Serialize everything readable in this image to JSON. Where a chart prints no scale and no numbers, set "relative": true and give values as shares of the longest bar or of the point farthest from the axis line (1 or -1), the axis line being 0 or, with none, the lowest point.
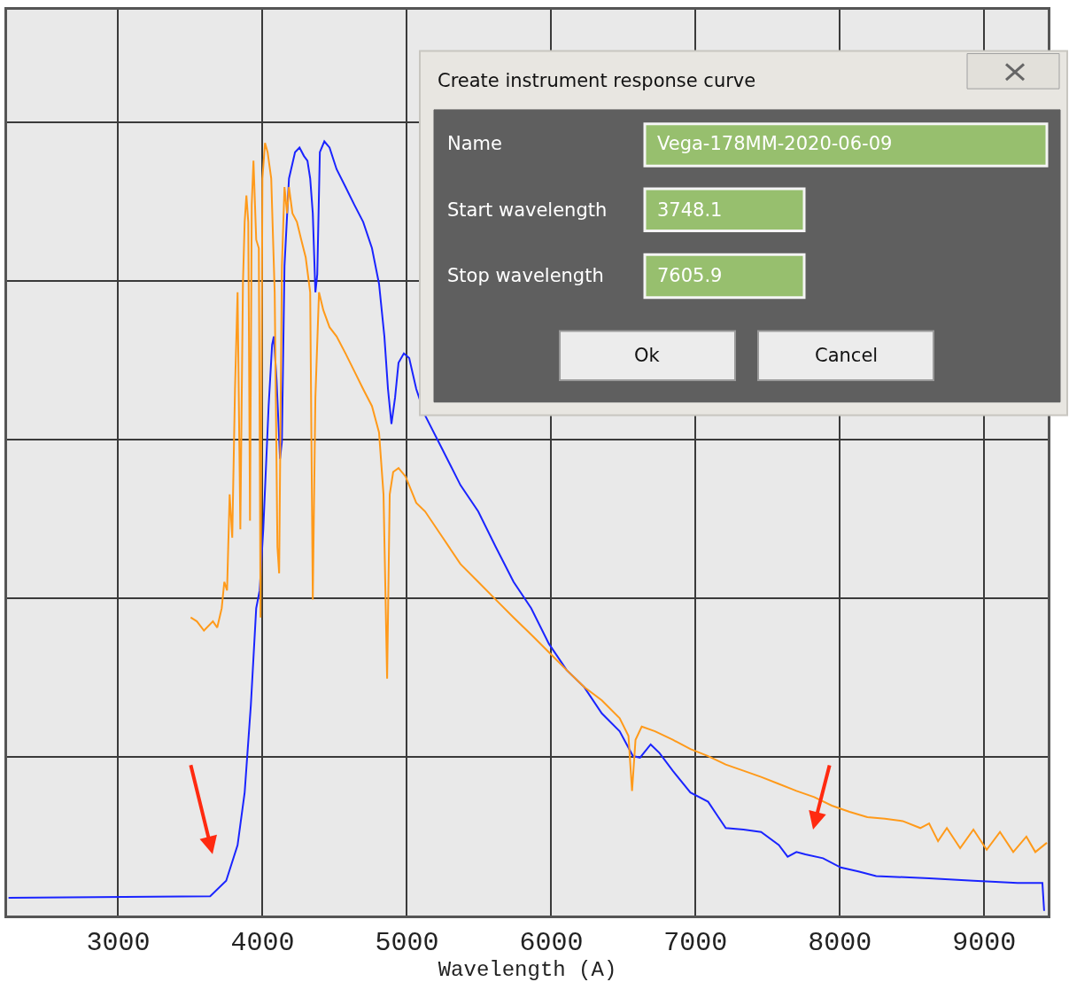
{
  "chart_data": {
    "type": "line",
    "relative": true,
    "xlabel": "Wavelength (A)",
    "xlim": [
      2230,
      9440
    ],
    "xticks": [
      3000,
      4000,
      5000,
      6000,
      7000,
      8000,
      9000
    ],
    "grid": true,
    "legend": false,
    "tick_labels": "x",
    "marker": "none",
    "line_style": "solid",
    "series": [
      {
        "color": "#1a24ff",
        "x": [
          2240,
          3637,
          3748,
          3827,
          3876,
          3919,
          3956,
          3980,
          4005,
          4042,
          4066,
          4078,
          4097,
          4121,
          4134,
          4152,
          4183,
          4225,
          4256,
          4287,
          4311,
          4330,
          4348,
          4366,
          4379,
          4397,
          4428,
          4464,
          4513,
          4575,
          4636,
          4697,
          4758,
          4807,
          4844,
          4869,
          4893,
          4918,
          4942,
          4979,
          5016,
          5065,
          5126,
          5249,
          5371,
          5494,
          5616,
          5739,
          5861,
          5984,
          6107,
          6229,
          6351,
          6474,
          6566,
          6615,
          6689,
          6750,
          6842,
          6964,
          7087,
          7148,
          7209,
          7332,
          7454,
          7577,
          7638,
          7699,
          7761,
          7883,
          8006,
          8128,
          8251,
          8618,
          8925,
          9231,
          9403,
          9415
        ],
        "values": [
          0.023,
          0.025,
          0.045,
          0.091,
          0.159,
          0.272,
          0.397,
          0.42,
          0.499,
          0.658,
          0.737,
          0.748,
          0.692,
          0.59,
          0.612,
          0.839,
          0.952,
          0.986,
          0.992,
          0.981,
          0.975,
          0.952,
          0.907,
          0.805,
          0.828,
          0.986,
          1.0,
          0.992,
          0.964,
          0.941,
          0.918,
          0.896,
          0.862,
          0.816,
          0.748,
          0.68,
          0.635,
          0.669,
          0.714,
          0.726,
          0.72,
          0.68,
          0.646,
          0.601,
          0.556,
          0.522,
          0.476,
          0.431,
          0.397,
          0.351,
          0.317,
          0.295,
          0.261,
          0.238,
          0.206,
          0.204,
          0.221,
          0.21,
          0.187,
          0.159,
          0.147,
          0.13,
          0.113,
          0.111,
          0.108,
          0.091,
          0.076,
          0.082,
          0.079,
          0.074,
          0.062,
          0.057,
          0.051,
          0.048,
          0.045,
          0.042,
          0.042,
          0.006
        ]
      },
      {
        "color": "#ff9a1a",
        "x": [
          3502,
          3545,
          3594,
          3656,
          3686,
          3717,
          3735,
          3754,
          3772,
          3790,
          3809,
          3827,
          3846,
          3864,
          3876,
          3888,
          3901,
          3913,
          3925,
          3937,
          3956,
          3974,
          3986,
          3999,
          4017,
          4035,
          4060,
          4084,
          4103,
          4115,
          4134,
          4152,
          4170,
          4183,
          4207,
          4238,
          4268,
          4299,
          4330,
          4348,
          4366,
          4391,
          4421,
          4464,
          4513,
          4575,
          4636,
          4697,
          4758,
          4807,
          4838,
          4863,
          4881,
          4905,
          4942,
          4991,
          5065,
          5126,
          5249,
          5371,
          5494,
          5616,
          5739,
          5861,
          5984,
          6107,
          6229,
          6351,
          6474,
          6535,
          6560,
          6584,
          6627,
          6719,
          6842,
          6964,
          7087,
          7209,
          7332,
          7454,
          7577,
          7699,
          7822,
          7944,
          8067,
          8190,
          8312,
          8435,
          8557,
          8618,
          8680,
          8741,
          8833,
          8925,
          9017,
          9109,
          9201,
          9292,
          9354,
          9434
        ],
        "values": [
          0.385,
          0.38,
          0.368,
          0.38,
          0.372,
          0.397,
          0.431,
          0.42,
          0.544,
          0.488,
          0.68,
          0.805,
          0.499,
          0.816,
          0.896,
          0.93,
          0.896,
          0.51,
          0.918,
          0.975,
          0.873,
          0.862,
          0.385,
          0.952,
          0.998,
          0.986,
          0.952,
          0.805,
          0.476,
          0.442,
          0.839,
          0.941,
          0.907,
          0.941,
          0.907,
          0.896,
          0.873,
          0.85,
          0.805,
          0.408,
          0.669,
          0.805,
          0.782,
          0.76,
          0.748,
          0.726,
          0.703,
          0.68,
          0.658,
          0.624,
          0.544,
          0.306,
          0.544,
          0.573,
          0.578,
          0.567,
          0.533,
          0.522,
          0.488,
          0.454,
          0.431,
          0.408,
          0.385,
          0.363,
          0.34,
          0.317,
          0.295,
          0.278,
          0.255,
          0.232,
          0.161,
          0.227,
          0.244,
          0.238,
          0.227,
          0.215,
          0.206,
          0.195,
          0.187,
          0.179,
          0.17,
          0.161,
          0.153,
          0.142,
          0.134,
          0.127,
          0.125,
          0.122,
          0.113,
          0.119,
          0.096,
          0.113,
          0.087,
          0.111,
          0.085,
          0.108,
          0.082,
          0.102,
          0.082,
          0.094
        ]
      }
    ],
    "annotations": [
      "Create instrument response curve",
      "Name",
      "Vega-178MM-2020-06-09",
      "Start wavelength",
      "3748.1",
      "Stop wavelength",
      "7605.9",
      "Ok",
      "Cancel"
    ]
  }
}
